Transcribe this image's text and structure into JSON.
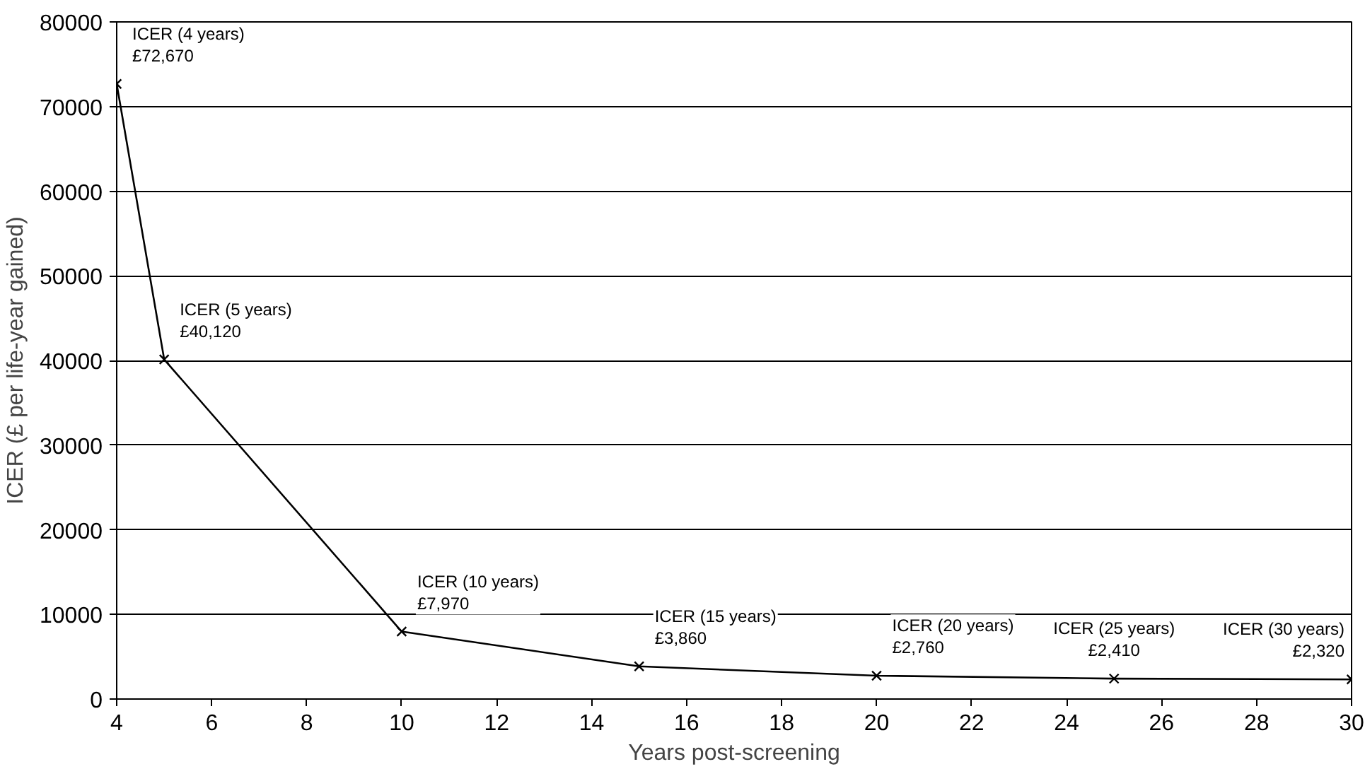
{
  "chart_data": {
    "type": "line",
    "xlabel": "Years post-screening",
    "ylabel": "ICER (£ per life-year gained)",
    "x": [
      4,
      5,
      10,
      15,
      20,
      25,
      30
    ],
    "series": [
      {
        "color": "#000000",
        "values": [
          72670,
          40120,
          7970,
          3860,
          2760,
          2410,
          2320
        ]
      }
    ],
    "marker": "cross",
    "line_style": "solid",
    "grid": "y",
    "xlim": [
      4,
      30
    ],
    "xticks": [
      4,
      6,
      8,
      10,
      12,
      14,
      16,
      18,
      20,
      22,
      24,
      26,
      28,
      30
    ],
    "ylim": [
      0,
      80000
    ],
    "yticks": [
      0,
      10000,
      20000,
      30000,
      40000,
      50000,
      60000,
      70000,
      80000
    ],
    "annotations": [
      {
        "text": "ICER (4 years)\n£72,670",
        "x": 4,
        "y": 72670
      },
      {
        "text": "ICER (5 years)\n£40,120",
        "x": 5,
        "y": 40120
      },
      {
        "text": "ICER (10 years)\n£7,970",
        "x": 10,
        "y": 7970
      },
      {
        "text": "ICER (15 years)\n£3,860",
        "x": 15,
        "y": 3860
      },
      {
        "text": "ICER (20 years)\n£2,760",
        "x": 20,
        "y": 2760
      },
      {
        "text": "ICER (25 years)\n£2,410",
        "x": 25,
        "y": 2410
      },
      {
        "text": "ICER (30 years)\n£2,320",
        "x": 30,
        "y": 2320
      }
    ]
  }
}
